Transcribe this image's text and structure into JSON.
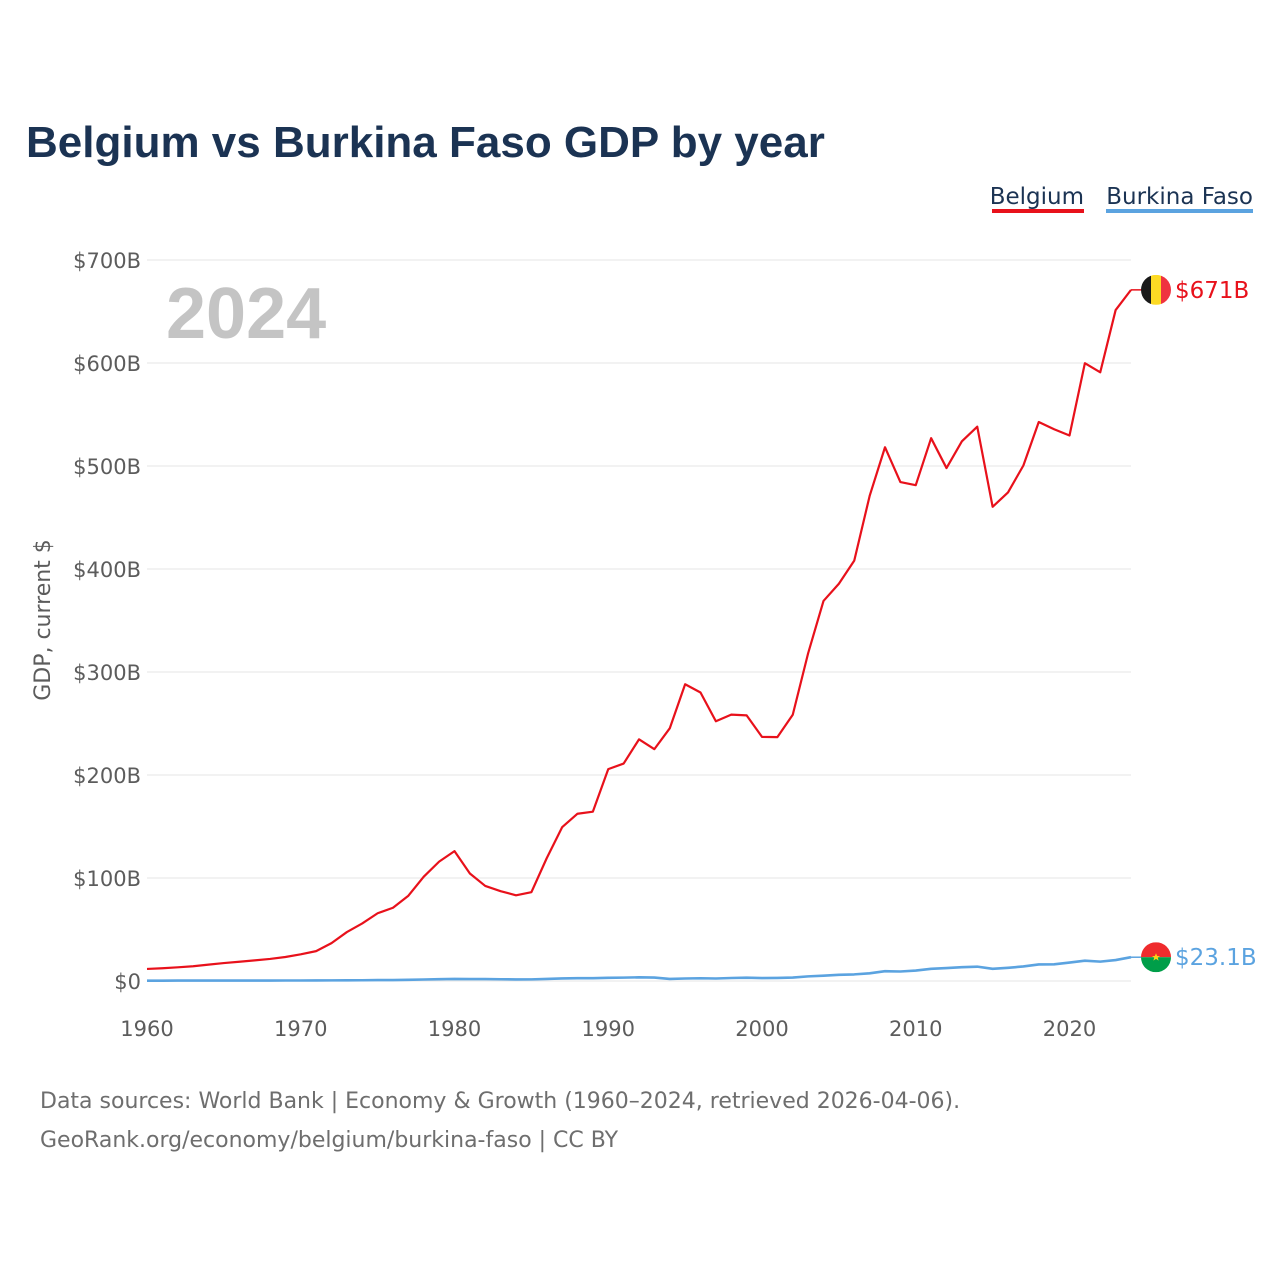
{
  "chart_data": {
    "type": "line",
    "title": "Belgium vs Burkina Faso GDP by year",
    "ylabel": "GDP, current $",
    "xlabel": "",
    "year_label": "2024",
    "xlim": [
      1960,
      2024
    ],
    "ylim": [
      0,
      700
    ],
    "y_unit": "billion USD",
    "y_ticks": [
      {
        "value": 0,
        "label": "$0"
      },
      {
        "value": 100,
        "label": "$100B"
      },
      {
        "value": 200,
        "label": "$200B"
      },
      {
        "value": 300,
        "label": "$300B"
      },
      {
        "value": 400,
        "label": "$400B"
      },
      {
        "value": 500,
        "label": "$500B"
      },
      {
        "value": 600,
        "label": "$600B"
      },
      {
        "value": 700,
        "label": "$700B"
      }
    ],
    "x_ticks": [
      {
        "value": 1960,
        "label": "1960"
      },
      {
        "value": 1970,
        "label": "1970"
      },
      {
        "value": 1980,
        "label": "1980"
      },
      {
        "value": 1990,
        "label": "1990"
      },
      {
        "value": 2000,
        "label": "2000"
      },
      {
        "value": 2010,
        "label": "2010"
      },
      {
        "value": 2020,
        "label": "2020"
      }
    ],
    "legend_position": "top-right",
    "grid": true,
    "x": [
      1960,
      1961,
      1962,
      1963,
      1964,
      1965,
      1966,
      1967,
      1968,
      1969,
      1970,
      1971,
      1972,
      1973,
      1974,
      1975,
      1976,
      1977,
      1978,
      1979,
      1980,
      1981,
      1982,
      1983,
      1984,
      1985,
      1986,
      1987,
      1988,
      1989,
      1990,
      1991,
      1992,
      1993,
      1994,
      1995,
      1996,
      1997,
      1998,
      1999,
      2000,
      2001,
      2002,
      2003,
      2004,
      2005,
      2006,
      2007,
      2008,
      2009,
      2010,
      2011,
      2012,
      2013,
      2014,
      2015,
      2016,
      2017,
      2018,
      2019,
      2020,
      2021,
      2022,
      2023,
      2024
    ],
    "series": [
      {
        "name": "Belgium",
        "color": "#e8111b",
        "end_label": "$671B",
        "values": [
          11.7,
          12.4,
          13.3,
          14.3,
          15.9,
          17.4,
          18.7,
          20.0,
          21.4,
          23.3,
          25.9,
          29.0,
          36.8,
          47.5,
          55.9,
          65.8,
          71.1,
          82.8,
          101.3,
          115.9,
          126.1,
          104.4,
          92.3,
          87.2,
          83.2,
          86.2,
          119.3,
          149.3,
          162.4,
          164.4,
          205.7,
          211.1,
          234.6,
          225.1,
          245.3,
          288.1,
          280.1,
          252.2,
          258.6,
          257.9,
          237.0,
          236.8,
          258.5,
          318.2,
          369.0,
          385.7,
          408.1,
          470.9,
          518.2,
          484.4,
          481.4,
          527.0,
          498.0,
          524.0,
          538.2,
          460.4,
          474.3,
          500.5,
          542.7,
          535.7,
          529.6,
          599.8,
          591.0,
          651.4,
          671.0
        ]
      },
      {
        "name": "Burkina Faso",
        "color": "#5ba3e0",
        "end_label": "$23.1B",
        "values": [
          0.33,
          0.35,
          0.38,
          0.39,
          0.4,
          0.42,
          0.43,
          0.45,
          0.46,
          0.48,
          0.5,
          0.52,
          0.61,
          0.66,
          0.74,
          0.94,
          0.95,
          1.18,
          1.47,
          1.81,
          2.03,
          1.88,
          1.89,
          1.71,
          1.53,
          1.57,
          2.02,
          2.45,
          2.72,
          2.72,
          3.09,
          3.27,
          3.57,
          3.35,
          2.04,
          2.42,
          2.66,
          2.44,
          2.92,
          3.21,
          2.86,
          3.0,
          3.36,
          4.49,
          5.2,
          5.99,
          6.42,
          7.43,
          9.5,
          9.22,
          10.11,
          11.86,
          12.56,
          13.44,
          13.94,
          11.83,
          12.83,
          14.11,
          16.06,
          16.18,
          17.93,
          19.74,
          18.82,
          20.32,
          23.1
        ]
      }
    ]
  },
  "footer": {
    "line1": "Data sources: World Bank | Economy & Growth (1960–2024, retrieved 2026-04-06).",
    "line2": "GeoRank.org/economy/belgium/burkina-faso | CC BY"
  },
  "colors": {
    "title": "#1b3353",
    "grid": "#e6e6e6",
    "tick": "#5c5c5c",
    "watermark": "#c4c4c4",
    "footer": "#6e6e6e",
    "belgium_flag": [
      "#1a1a1a",
      "#fdda24",
      "#ef3340"
    ],
    "burkina_flag": [
      "#ef2b2d",
      "#009e49",
      "#fcd116"
    ]
  },
  "icons": {
    "belgium_marker": "belgium-flag-icon",
    "burkina_marker": "burkina-faso-flag-icon"
  }
}
